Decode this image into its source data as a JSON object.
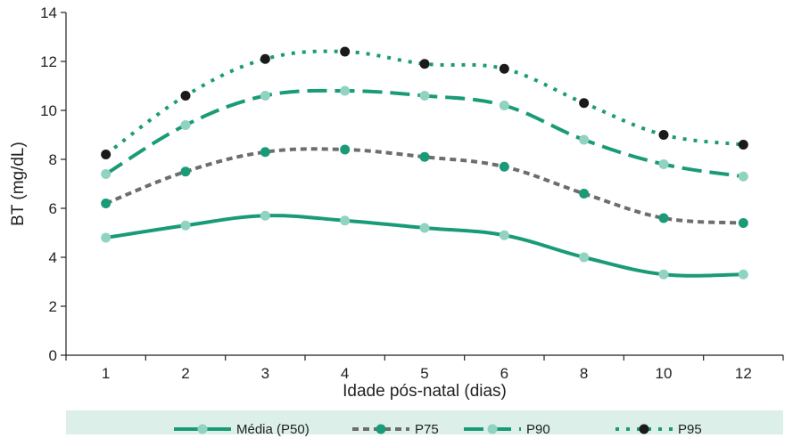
{
  "chart_data": {
    "type": "line",
    "xlabel": "Idade pós-natal (dias)",
    "ylabel": "BT (mg/dL)",
    "categories": [
      "1",
      "2",
      "3",
      "4",
      "5",
      "6",
      "8",
      "10",
      "12"
    ],
    "ylim": [
      0,
      14
    ],
    "yticks": [
      "0",
      "2",
      "4",
      "6",
      "8",
      "10",
      "12",
      "14"
    ],
    "legend_position": "bottom",
    "series": [
      {
        "name": "Média (P50)",
        "values": [
          4.8,
          5.3,
          5.7,
          5.5,
          5.2,
          4.9,
          4.0,
          3.3,
          3.3
        ],
        "line_color": "#1a9b78",
        "marker_color": "#8fd3c0",
        "dash": "solid"
      },
      {
        "name": "P75",
        "values": [
          6.2,
          7.5,
          8.3,
          8.4,
          8.1,
          7.7,
          6.6,
          5.6,
          5.4
        ],
        "line_color": "#6d6d6d",
        "marker_color": "#1a9b78",
        "dash": "short"
      },
      {
        "name": "P90",
        "values": [
          7.4,
          9.4,
          10.6,
          10.8,
          10.6,
          10.2,
          8.8,
          7.8,
          7.3
        ],
        "line_color": "#1a9b78",
        "marker_color": "#8fd3c0",
        "dash": "long"
      },
      {
        "name": "P95",
        "values": [
          8.2,
          10.6,
          12.1,
          12.4,
          11.9,
          11.7,
          10.3,
          9.0,
          8.6
        ],
        "line_color": "#1a9b78",
        "marker_color": "#1a1a1a",
        "dash": "dotted"
      }
    ]
  }
}
